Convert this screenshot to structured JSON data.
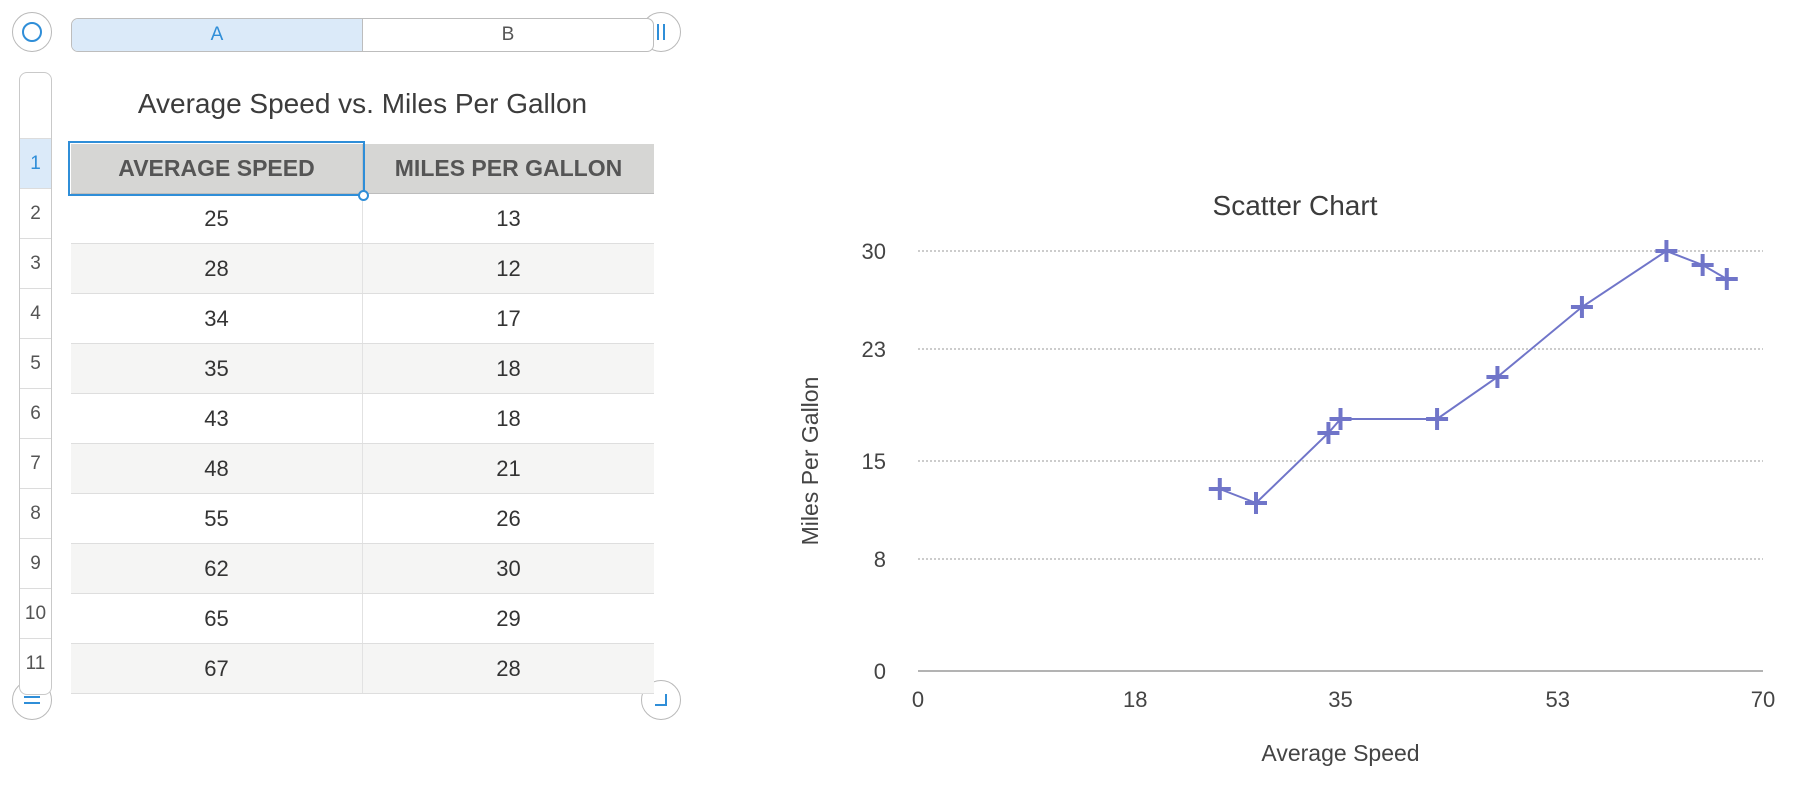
{
  "columns": [
    "A",
    "B"
  ],
  "row_numbers": [
    "1",
    "2",
    "3",
    "4",
    "5",
    "6",
    "7",
    "8",
    "9",
    "10",
    "11"
  ],
  "table": {
    "title": "Average Speed vs. Miles Per Gallon",
    "headers": [
      "AVERAGE SPEED",
      "MILES PER GALLON"
    ],
    "rows": [
      [
        "25",
        "13"
      ],
      [
        "28",
        "12"
      ],
      [
        "34",
        "17"
      ],
      [
        "35",
        "18"
      ],
      [
        "43",
        "18"
      ],
      [
        "48",
        "21"
      ],
      [
        "55",
        "26"
      ],
      [
        "62",
        "30"
      ],
      [
        "65",
        "29"
      ],
      [
        "67",
        "28"
      ]
    ]
  },
  "icons": {
    "top_left": "circle-select-icon",
    "top_right": "column-handle-icon",
    "bottom_left": "row-handle-icon",
    "bottom_right": "resize-corner-icon"
  },
  "colors": {
    "accent": "#2f8ed8",
    "series": "#7075c9"
  },
  "chart_data": {
    "type": "scatter",
    "title": "Scatter Chart",
    "xlabel": "Average Speed",
    "ylabel": "Miles Per Gallon",
    "xlim": [
      0,
      70
    ],
    "ylim": [
      0,
      30
    ],
    "xticks": [
      "0",
      "18",
      "35",
      "53",
      "70"
    ],
    "yticks": [
      "0",
      "8",
      "15",
      "23",
      "30"
    ],
    "grid": true,
    "connect_points": true,
    "series": [
      {
        "x": [
          25,
          28,
          34,
          35,
          43,
          48,
          55,
          62,
          65,
          67
        ],
        "y": [
          13,
          12,
          17,
          18,
          18,
          21,
          26,
          30,
          29,
          28
        ]
      }
    ]
  }
}
